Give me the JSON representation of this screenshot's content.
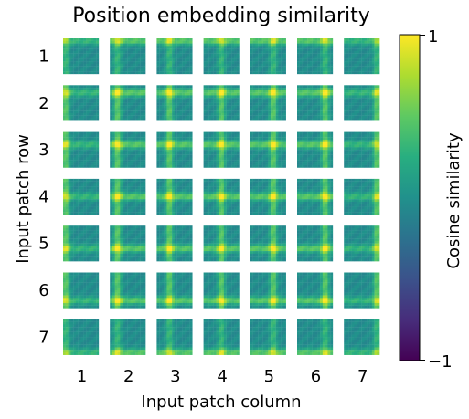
{
  "chart_data": {
    "type": "heatmap",
    "title": "Position embedding similarity",
    "xlabel": "Input patch column",
    "ylabel": "Input patch row",
    "row_tick_labels": [
      "1",
      "2",
      "3",
      "4",
      "5",
      "6",
      "7"
    ],
    "col_tick_labels": [
      "1",
      "2",
      "3",
      "4",
      "5",
      "6",
      "7"
    ],
    "grid_rows": 7,
    "grid_cols": 7,
    "cells_per_tile": 14,
    "colorbar": {
      "label": "Cosine similarity",
      "min": -1,
      "max": 1,
      "tick_labels": [
        "1",
        "−1"
      ],
      "colormap": "viridis"
    },
    "description_values": {
      "row_similarity_bands": "each tile shows horizontal bands of high similarity aligned with its own row and vertical bands aligned with its own column; center tiles peak near 1, edge tiles mostly near 0"
    }
  }
}
